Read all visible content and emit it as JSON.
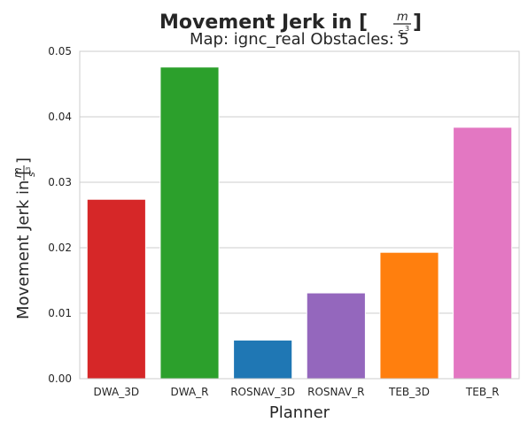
{
  "chart_data": {
    "type": "bar",
    "title": "Movement Jerk in [m/s³]",
    "title_parts": {
      "prefix": "Movement Jerk in [",
      "numerator": "m",
      "denominator": "s",
      "exponent": "3",
      "suffix": "]"
    },
    "subtitle": "Map: ignc_real Obstacles: 5",
    "xlabel": "Planner",
    "ylabel": "Movement Jerk in [m/s³]",
    "ylabel_parts": {
      "prefix": "Movement Jerk in [",
      "numerator": "m",
      "denominator": "s",
      "exponent": "3",
      "suffix": "]"
    },
    "categories": [
      "DWA_3D",
      "DWA_R",
      "ROSNAV_3D",
      "ROSNAV_R",
      "TEB_3D",
      "TEB_R"
    ],
    "values": [
      0.0274,
      0.0476,
      0.0059,
      0.0131,
      0.0193,
      0.0384
    ],
    "colors": [
      "#d62728",
      "#2ca02c",
      "#1f77b4",
      "#9467bd",
      "#ff7f0e",
      "#e377c2"
    ],
    "ylim": [
      0,
      0.05
    ],
    "yticks": [
      0.0,
      0.01,
      0.02,
      0.03,
      0.04,
      0.05
    ],
    "ytick_labels": [
      "0.00",
      "0.01",
      "0.02",
      "0.03",
      "0.04",
      "0.05"
    ],
    "grid": true,
    "grid_axis": "y"
  }
}
